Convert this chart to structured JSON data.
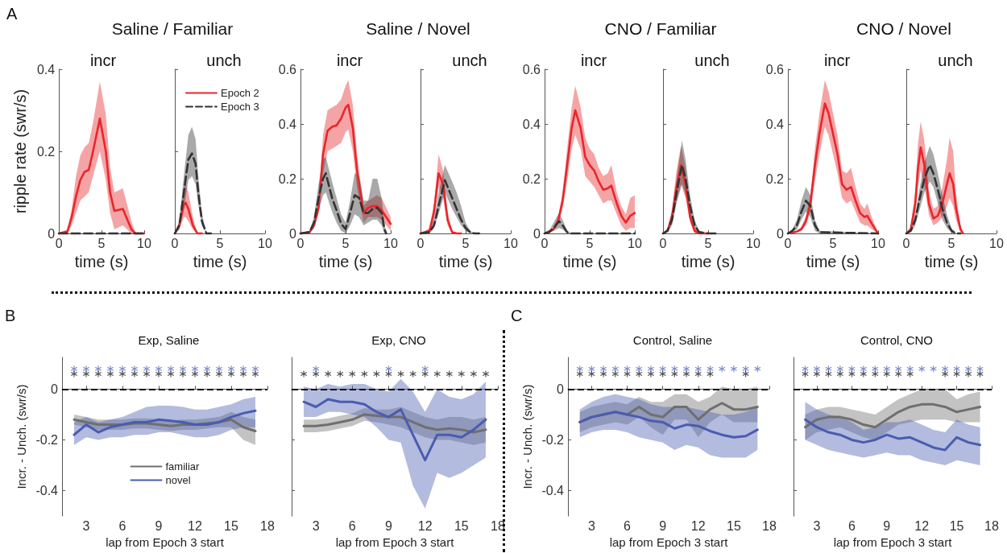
{
  "chart_data": [
    {
      "type": "line",
      "title": "incr",
      "subtitle": "Saline / Familiar",
      "xlabel": "time (s)",
      "ylabel": "ripple rate (swr/s)",
      "annotations": [
        "A"
      ],
      "xlim": [
        0,
        10
      ],
      "xticks": [
        0,
        5,
        10
      ],
      "ylim": [
        0,
        0.4
      ],
      "yticks": [
        0,
        0.2,
        0.4
      ],
      "marker": "none",
      "line_style": "solid",
      "series": [
        {
          "color": "#e8262b",
          "x": [
            0,
            1,
            1.5,
            2,
            2.5,
            3,
            3.5,
            4,
            4.8,
            5.5,
            6,
            6.5,
            7.5,
            8.5,
            9,
            10
          ],
          "values": [
            0,
            0.005,
            0.04,
            0.09,
            0.13,
            0.15,
            0.155,
            0.2,
            0.28,
            0.2,
            0.1,
            0.055,
            0.06,
            0.01,
            0,
            0
          ],
          "lower": [
            0,
            0,
            0.02,
            0.05,
            0.08,
            0.09,
            0.1,
            0.14,
            0.2,
            0.13,
            0.05,
            0.01,
            0.02,
            0,
            0,
            0
          ],
          "upper": [
            0,
            0.01,
            0.06,
            0.14,
            0.19,
            0.21,
            0.22,
            0.27,
            0.37,
            0.29,
            0.16,
            0.1,
            0.11,
            0.03,
            0,
            0
          ]
        },
        {
          "color": "#333333",
          "line_style": "dashed",
          "x": [
            0,
            10
          ],
          "values": [
            0,
            0
          ]
        }
      ]
    },
    {
      "type": "line",
      "title": "unch",
      "xlabel": "time (s)",
      "tick_labels": "x",
      "legend": "top",
      "xlim": [
        0,
        10
      ],
      "xticks": [
        0,
        5,
        10
      ],
      "ylim": [
        0,
        0.4
      ],
      "yticks": [
        0,
        0.2,
        0.4
      ],
      "marker": "none",
      "line_style": "solid",
      "series": [
        {
          "name": "Epoch 2",
          "color": "#e8262b",
          "x": [
            0,
            0.5,
            1,
            1.2,
            1.5,
            2,
            2.5,
            3
          ],
          "values": [
            0,
            0.02,
            0.07,
            0.075,
            0.06,
            0.02,
            0,
            0
          ],
          "lower": [
            0,
            0.01,
            0.04,
            0.04,
            0.03,
            0.01,
            0,
            0
          ],
          "upper": [
            0,
            0.03,
            0.11,
            0.12,
            0.1,
            0.04,
            0,
            0
          ]
        },
        {
          "name": "Epoch 3",
          "color": "#333333",
          "line_style": "dashed",
          "x": [
            0,
            0.5,
            1,
            1.5,
            1.9,
            2.3,
            2.6,
            3,
            3.5,
            4
          ],
          "values": [
            0,
            0.02,
            0.1,
            0.18,
            0.195,
            0.17,
            0.1,
            0.03,
            0,
            0
          ],
          "lower": [
            0,
            0.01,
            0.06,
            0.13,
            0.14,
            0.12,
            0.07,
            0.02,
            0,
            0
          ],
          "upper": [
            0,
            0.03,
            0.14,
            0.24,
            0.26,
            0.23,
            0.14,
            0.05,
            0,
            0
          ]
        }
      ]
    },
    {
      "type": "line",
      "title": "incr",
      "subtitle": "Saline / Novel",
      "xlabel": "time (s)",
      "xlim": [
        0,
        10
      ],
      "xticks": [
        0,
        5,
        10
      ],
      "ylim": [
        0,
        0.6
      ],
      "yticks": [
        0,
        0.2,
        0.4,
        0.6
      ],
      "marker": "none",
      "line_style": "solid",
      "series": [
        {
          "color": "#e8262b",
          "x": [
            0,
            1,
            1.5,
            2,
            2.5,
            3,
            3.5,
            4,
            4.5,
            5,
            5.3,
            5.8,
            6.3,
            7,
            7.5,
            8,
            8.5,
            9,
            10
          ],
          "values": [
            0,
            0.005,
            0.03,
            0.094,
            0.29,
            0.375,
            0.39,
            0.395,
            0.42,
            0.46,
            0.47,
            0.385,
            0.22,
            0.075,
            0.094,
            0.1,
            0.1,
            0.085,
            0.035
          ],
          "lower": [
            0,
            0,
            0.02,
            0.07,
            0.22,
            0.3,
            0.31,
            0.32,
            0.33,
            0.37,
            0.38,
            0.3,
            0.16,
            0.04,
            0.06,
            0.06,
            0.06,
            0.05,
            0.01
          ],
          "upper": [
            0,
            0.01,
            0.04,
            0.12,
            0.36,
            0.45,
            0.46,
            0.47,
            0.49,
            0.54,
            0.56,
            0.47,
            0.28,
            0.1,
            0.12,
            0.13,
            0.14,
            0.13,
            0.06
          ]
        },
        {
          "color": "#333333",
          "line_style": "dashed",
          "x": [
            0,
            1,
            1.5,
            2,
            2.5,
            2.8,
            3.5,
            4,
            4.5,
            5,
            5.5,
            6,
            6.5,
            7,
            7.5,
            8,
            8.5,
            9,
            9.3,
            9.5
          ],
          "values": [
            0,
            0.005,
            0.04,
            0.13,
            0.2,
            0.22,
            0.13,
            0.085,
            0.036,
            0.016,
            0.075,
            0.14,
            0.13,
            0.075,
            0.075,
            0.09,
            0.094,
            0.075,
            0.016,
            0
          ],
          "lower": [
            0,
            0,
            0.02,
            0.08,
            0.14,
            0.15,
            0.08,
            0.04,
            0.01,
            0,
            0.03,
            0.07,
            0.06,
            0.03,
            0.04,
            0.05,
            0.05,
            0.03,
            0,
            0
          ],
          "upper": [
            0,
            0.01,
            0.06,
            0.18,
            0.27,
            0.28,
            0.19,
            0.13,
            0.07,
            0.04,
            0.12,
            0.22,
            0.21,
            0.12,
            0.12,
            0.2,
            0.2,
            0.13,
            0.04,
            0
          ]
        }
      ]
    },
    {
      "type": "line",
      "title": "unch",
      "xlabel": "time (s)",
      "tick_labels": "x",
      "xlim": [
        0,
        10
      ],
      "xticks": [
        0,
        5,
        10
      ],
      "ylim": [
        0,
        0.6
      ],
      "yticks": [
        0,
        0.2,
        0.4,
        0.6
      ],
      "marker": "none",
      "line_style": "solid",
      "series": [
        {
          "color": "#e8262b",
          "x": [
            0,
            1,
            1.5,
            2,
            2.5,
            3,
            3.5,
            4,
            4.5
          ],
          "values": [
            0,
            0.01,
            0.08,
            0.22,
            0.18,
            0.05,
            0.005,
            0,
            0
          ],
          "lower": [
            0,
            0,
            0.05,
            0.17,
            0.13,
            0.03,
            0,
            0,
            0
          ],
          "upper": [
            0,
            0.02,
            0.11,
            0.29,
            0.23,
            0.08,
            0.01,
            0,
            0
          ]
        },
        {
          "color": "#333333",
          "line_style": "dashed",
          "x": [
            0,
            1,
            1.5,
            2,
            2.7,
            3.5,
            4,
            4.5,
            5,
            5.5,
            6,
            6.5
          ],
          "values": [
            0,
            0.005,
            0.03,
            0.1,
            0.195,
            0.13,
            0.09,
            0.05,
            0.02,
            0.005,
            0,
            0
          ],
          "lower": [
            0,
            0,
            0.02,
            0.07,
            0.15,
            0.09,
            0.06,
            0.03,
            0.01,
            0,
            0,
            0
          ],
          "upper": [
            0,
            0.01,
            0.05,
            0.15,
            0.25,
            0.19,
            0.15,
            0.1,
            0.04,
            0.01,
            0,
            0
          ]
        }
      ]
    },
    {
      "type": "line",
      "title": "incr",
      "subtitle": "CNO / Familiar",
      "xlabel": "time (s)",
      "xlim": [
        0,
        10
      ],
      "xticks": [
        0,
        5,
        10
      ],
      "ylim": [
        0,
        0.6
      ],
      "yticks": [
        0,
        0.2,
        0.4,
        0.6
      ],
      "marker": "none",
      "line_style": "solid",
      "series": [
        {
          "color": "#e8262b",
          "x": [
            0,
            1,
            1.5,
            2,
            2.5,
            3,
            3.4,
            4,
            4.5,
            5,
            5.5,
            6,
            6.5,
            7,
            7.4,
            8,
            8.5,
            9,
            9.5,
            10
          ],
          "values": [
            0,
            0.016,
            0.046,
            0.12,
            0.25,
            0.385,
            0.45,
            0.385,
            0.28,
            0.25,
            0.23,
            0.19,
            0.16,
            0.165,
            0.175,
            0.11,
            0.065,
            0.04,
            0.065,
            0.075
          ],
          "lower": [
            0,
            0.01,
            0.035,
            0.09,
            0.19,
            0.31,
            0.36,
            0.31,
            0.21,
            0.19,
            0.17,
            0.14,
            0.11,
            0.12,
            0.12,
            0.07,
            0.03,
            0.01,
            0.02,
            0.02
          ],
          "upper": [
            0,
            0.02,
            0.06,
            0.15,
            0.31,
            0.46,
            0.54,
            0.46,
            0.35,
            0.31,
            0.29,
            0.24,
            0.21,
            0.22,
            0.25,
            0.15,
            0.1,
            0.07,
            0.13,
            0.14
          ]
        },
        {
          "color": "#333333",
          "line_style": "dashed",
          "x": [
            0,
            0.5,
            1,
            1.6,
            2,
            2.5,
            3,
            10
          ],
          "values": [
            0,
            0.005,
            0.02,
            0.045,
            0.03,
            0.005,
            0,
            0
          ],
          "lower": [
            0,
            0,
            0.01,
            0.02,
            0.015,
            0,
            0,
            0
          ],
          "upper": [
            0,
            0.01,
            0.04,
            0.075,
            0.05,
            0.01,
            0,
            0
          ]
        }
      ]
    },
    {
      "type": "line",
      "title": "unch",
      "xlabel": "time (s)",
      "tick_labels": "x",
      "xlim": [
        0,
        10
      ],
      "xticks": [
        0,
        5,
        10
      ],
      "ylim": [
        0,
        0.6
      ],
      "yticks": [
        0,
        0.2,
        0.4,
        0.6
      ],
      "marker": "none",
      "line_style": "solid",
      "series": [
        {
          "color": "#e8262b",
          "x": [
            0,
            0.5,
            1,
            1.5,
            2,
            2.5,
            3,
            3.5,
            4,
            5
          ],
          "values": [
            0,
            0.01,
            0.06,
            0.17,
            0.25,
            0.18,
            0.06,
            0.01,
            0,
            0
          ],
          "lower": [
            0,
            0.005,
            0.04,
            0.12,
            0.18,
            0.13,
            0.04,
            0,
            0,
            0
          ],
          "upper": [
            0,
            0.015,
            0.09,
            0.23,
            0.32,
            0.24,
            0.09,
            0.02,
            0,
            0
          ]
        },
        {
          "color": "#333333",
          "line_style": "dashed",
          "x": [
            0,
            0.5,
            1,
            1.5,
            2.1,
            2.5,
            3,
            3.5,
            4,
            5,
            6
          ],
          "values": [
            0,
            0.01,
            0.05,
            0.15,
            0.25,
            0.2,
            0.1,
            0.03,
            0.005,
            0,
            0
          ],
          "lower": [
            0,
            0.005,
            0.03,
            0.11,
            0.18,
            0.14,
            0.07,
            0.02,
            0,
            0,
            0
          ],
          "upper": [
            0,
            0.02,
            0.08,
            0.2,
            0.34,
            0.27,
            0.14,
            0.05,
            0.01,
            0,
            0
          ]
        }
      ]
    },
    {
      "type": "line",
      "title": "incr",
      "subtitle": "CNO / Novel",
      "xlabel": "time (s)",
      "xlim": [
        0,
        10
      ],
      "xticks": [
        0,
        5,
        10
      ],
      "ylim": [
        0,
        0.6
      ],
      "yticks": [
        0,
        0.2,
        0.4,
        0.6
      ],
      "marker": "none",
      "line_style": "solid",
      "series": [
        {
          "color": "#e8262b",
          "x": [
            0,
            1,
            1.5,
            2,
            2.5,
            3,
            3.5,
            4.1,
            4.5,
            5,
            5.5,
            6,
            6.5,
            7,
            7.5,
            8,
            8.5,
            8.8,
            9.3,
            10
          ],
          "values": [
            0,
            0.007,
            0.016,
            0.045,
            0.11,
            0.25,
            0.365,
            0.475,
            0.44,
            0.365,
            0.29,
            0.18,
            0.16,
            0.17,
            0.12,
            0.075,
            0.06,
            0.065,
            0.036,
            0
          ],
          "lower": [
            0,
            0.003,
            0.01,
            0.03,
            0.08,
            0.19,
            0.29,
            0.39,
            0.36,
            0.29,
            0.22,
            0.13,
            0.11,
            0.12,
            0.08,
            0.04,
            0.03,
            0.03,
            0.015,
            0
          ],
          "upper": [
            0,
            0.01,
            0.025,
            0.065,
            0.14,
            0.31,
            0.44,
            0.56,
            0.52,
            0.44,
            0.36,
            0.23,
            0.22,
            0.24,
            0.17,
            0.11,
            0.09,
            0.11,
            0.06,
            0
          ]
        },
        {
          "color": "#333333",
          "line_style": "dashed",
          "x": [
            0,
            0.5,
            1,
            1.5,
            2,
            2.5,
            3,
            3.5,
            10
          ],
          "values": [
            0,
            0.01,
            0.03,
            0.08,
            0.12,
            0.1,
            0.03,
            0.005,
            0
          ],
          "lower": [
            0,
            0.005,
            0.015,
            0.05,
            0.08,
            0.06,
            0.01,
            0,
            0
          ],
          "upper": [
            0,
            0.015,
            0.05,
            0.12,
            0.17,
            0.14,
            0.05,
            0.01,
            0
          ]
        }
      ]
    },
    {
      "type": "line",
      "title": "unch",
      "xlabel": "time (s)",
      "tick_labels": "x",
      "xlim": [
        0,
        10
      ],
      "xticks": [
        0,
        5,
        10
      ],
      "ylim": [
        0,
        0.6
      ],
      "yticks": [
        0,
        0.2,
        0.4,
        0.6
      ],
      "marker": "none",
      "line_style": "solid",
      "series": [
        {
          "color": "#e8262b",
          "x": [
            0,
            0.5,
            1,
            1.3,
            1.6,
            2,
            2.5,
            3,
            3.5,
            4,
            4.5,
            4.8,
            5.2,
            5.5,
            6,
            6.3
          ],
          "values": [
            0,
            0.016,
            0.11,
            0.24,
            0.315,
            0.25,
            0.11,
            0.055,
            0.065,
            0.11,
            0.18,
            0.22,
            0.18,
            0.094,
            0.016,
            0
          ],
          "lower": [
            0,
            0.01,
            0.07,
            0.17,
            0.23,
            0.17,
            0.07,
            0.03,
            0.04,
            0.06,
            0.1,
            0.13,
            0.1,
            0.05,
            0.005,
            0
          ],
          "upper": [
            0,
            0.025,
            0.16,
            0.33,
            0.41,
            0.34,
            0.16,
            0.09,
            0.1,
            0.17,
            0.27,
            0.35,
            0.3,
            0.15,
            0.03,
            0
          ]
        },
        {
          "color": "#333333",
          "line_style": "dashed",
          "x": [
            0,
            0.5,
            1,
            1.5,
            2,
            2.6,
            3,
            3.5,
            4,
            4.5,
            5,
            5.5,
            6
          ],
          "values": [
            0,
            0.01,
            0.05,
            0.13,
            0.2,
            0.25,
            0.22,
            0.16,
            0.09,
            0.04,
            0.01,
            0,
            0
          ],
          "lower": [
            0,
            0.005,
            0.03,
            0.09,
            0.15,
            0.19,
            0.17,
            0.11,
            0.05,
            0.02,
            0.005,
            0,
            0
          ],
          "upper": [
            0,
            0.015,
            0.07,
            0.17,
            0.26,
            0.32,
            0.29,
            0.22,
            0.14,
            0.07,
            0.02,
            0,
            0
          ]
        }
      ]
    },
    {
      "type": "line",
      "title": "Exp, Saline",
      "xlabel": "lap from Epoch 3 start",
      "ylabel": "Incr. - Unch. (swr/s)",
      "annotations": [
        "B"
      ],
      "legend": "bottom",
      "xlim": [
        1,
        18
      ],
      "xticks": [
        3,
        6,
        9,
        12,
        15,
        18
      ],
      "ylim": [
        -0.5,
        0.125
      ],
      "yticks": [
        -0.4,
        -0.2,
        0
      ],
      "marker": "none",
      "line_style": "solid",
      "ref_lines": [
        {
          "axis": "y",
          "value": 0,
          "color": "#000000",
          "line_style": "dashed"
        }
      ],
      "x": [
        2,
        3,
        4,
        5,
        6,
        7,
        8,
        9,
        10,
        11,
        12,
        13,
        14,
        15,
        16,
        17
      ],
      "series": [
        {
          "name": "familiar",
          "color": "#6f6f6f",
          "values": [
            -0.12,
            -0.13,
            -0.14,
            -0.14,
            -0.14,
            -0.135,
            -0.135,
            -0.14,
            -0.145,
            -0.14,
            -0.14,
            -0.135,
            -0.13,
            -0.12,
            -0.15,
            -0.165
          ],
          "lower": [
            -0.14,
            -0.15,
            -0.16,
            -0.16,
            -0.16,
            -0.155,
            -0.155,
            -0.16,
            -0.165,
            -0.16,
            -0.16,
            -0.155,
            -0.15,
            -0.15,
            -0.2,
            -0.22
          ],
          "upper": [
            -0.1,
            -0.11,
            -0.12,
            -0.12,
            -0.12,
            -0.115,
            -0.115,
            -0.12,
            -0.125,
            -0.12,
            -0.12,
            -0.115,
            -0.11,
            -0.09,
            -0.11,
            -0.12
          ]
        },
        {
          "name": "novel",
          "color": "#4a5cb0",
          "values": [
            -0.18,
            -0.14,
            -0.17,
            -0.15,
            -0.14,
            -0.13,
            -0.13,
            -0.12,
            -0.125,
            -0.13,
            -0.14,
            -0.14,
            -0.13,
            -0.11,
            -0.095,
            -0.085
          ],
          "lower": [
            -0.22,
            -0.19,
            -0.2,
            -0.19,
            -0.19,
            -0.18,
            -0.18,
            -0.17,
            -0.17,
            -0.18,
            -0.19,
            -0.19,
            -0.18,
            -0.16,
            -0.15,
            -0.15
          ],
          "upper": [
            -0.13,
            -0.11,
            -0.13,
            -0.12,
            -0.11,
            -0.09,
            -0.07,
            -0.065,
            -0.065,
            -0.07,
            -0.08,
            -0.08,
            -0.07,
            -0.06,
            -0.04,
            -0.03
          ]
        },
        {
          "type": "scatter",
          "marker": "cross",
          "color": "#5b6ec4",
          "values": [
            0.08,
            0.08,
            0.08,
            0.08,
            0.08,
            0.08,
            0.08,
            0.08,
            0.08,
            0.08,
            0.08,
            0.08,
            0.08,
            0.08,
            0.08,
            0.08
          ]
        },
        {
          "type": "scatter",
          "marker": "cross",
          "color": "#222222",
          "values": [
            0.06,
            0.06,
            0.06,
            0.06,
            0.06,
            0.06,
            0.06,
            0.06,
            0.06,
            0.06,
            0.06,
            0.06,
            0.06,
            0.06,
            0.06,
            0.06
          ]
        }
      ]
    },
    {
      "type": "line",
      "title": "Exp, CNO",
      "xlabel": "lap from Epoch 3 start",
      "tick_labels": "x",
      "xlim": [
        1,
        18
      ],
      "xticks": [
        3,
        6,
        9,
        12,
        15,
        18
      ],
      "ylim": [
        -0.5,
        0.125
      ],
      "yticks": [
        -0.4,
        -0.2,
        0
      ],
      "marker": "none",
      "line_style": "solid",
      "ref_lines": [
        {
          "axis": "y",
          "value": 0,
          "color": "#000000",
          "line_style": "dashed"
        }
      ],
      "x": [
        2,
        3,
        4,
        5,
        6,
        7,
        8,
        9,
        10,
        11,
        12,
        13,
        14,
        15,
        16,
        17
      ],
      "series": [
        {
          "color": "#6f6f6f",
          "values": [
            -0.145,
            -0.145,
            -0.14,
            -0.13,
            -0.12,
            -0.1,
            -0.105,
            -0.11,
            -0.11,
            -0.13,
            -0.15,
            -0.16,
            -0.155,
            -0.16,
            -0.17,
            -0.16
          ],
          "lower": [
            -0.17,
            -0.17,
            -0.165,
            -0.155,
            -0.145,
            -0.125,
            -0.13,
            -0.14,
            -0.15,
            -0.17,
            -0.19,
            -0.2,
            -0.2,
            -0.21,
            -0.22,
            -0.21
          ],
          "upper": [
            -0.12,
            -0.12,
            -0.115,
            -0.105,
            -0.095,
            -0.075,
            -0.08,
            -0.08,
            -0.07,
            -0.09,
            -0.11,
            -0.12,
            -0.11,
            -0.11,
            -0.12,
            -0.11
          ]
        },
        {
          "color": "#4a5cb0",
          "values": [
            -0.05,
            -0.07,
            -0.04,
            -0.05,
            -0.05,
            -0.06,
            -0.09,
            -0.11,
            -0.08,
            -0.18,
            -0.28,
            -0.18,
            -0.18,
            -0.19,
            -0.16,
            -0.12
          ],
          "lower": [
            -0.11,
            -0.11,
            -0.09,
            -0.09,
            -0.1,
            -0.11,
            -0.15,
            -0.2,
            -0.21,
            -0.38,
            -0.47,
            -0.33,
            -0.35,
            -0.33,
            -0.3,
            -0.27
          ],
          "upper": [
            0.01,
            0,
            0.02,
            0.01,
            0.02,
            0.02,
            0,
            -0.01,
            0.04,
            -0.01,
            -0.09,
            0,
            -0.03,
            -0.04,
            -0.02,
            0.03
          ]
        },
        {
          "type": "scatter",
          "marker": "cross",
          "color": "#5b6ec4",
          "x": [
            3,
            9,
            12
          ],
          "values": [
            0.08,
            0.08,
            0.08
          ]
        },
        {
          "type": "scatter",
          "marker": "cross",
          "color": "#222222",
          "values": [
            0.06,
            0.06,
            0.06,
            0.06,
            0.06,
            0.06,
            0.06,
            0.06,
            0.06,
            0.06,
            0.06,
            0.06,
            0.06,
            0.06,
            0.06,
            0.06
          ]
        }
      ]
    },
    {
      "type": "line",
      "title": "Control, Saline",
      "xlabel": "lap from Epoch 3 start",
      "ylabel": "Incr. - Unch. (swr/s)",
      "annotations": [
        "C"
      ],
      "xlim": [
        1,
        18
      ],
      "xticks": [
        3,
        6,
        9,
        12,
        15,
        18
      ],
      "ylim": [
        -0.5,
        0.125
      ],
      "yticks": [
        -0.4,
        -0.2,
        0
      ],
      "marker": "none",
      "line_style": "solid",
      "ref_lines": [
        {
          "axis": "y",
          "value": 0,
          "color": "#000000",
          "line_style": "dashed"
        }
      ],
      "x": [
        2,
        3,
        4,
        5,
        6,
        7,
        8,
        9,
        10,
        11,
        12,
        13,
        14,
        15,
        16,
        17
      ],
      "series": [
        {
          "color": "#6f6f6f",
          "values": [
            -0.13,
            -0.11,
            -0.1,
            -0.09,
            -0.1,
            -0.07,
            -0.1,
            -0.11,
            -0.07,
            -0.07,
            -0.12,
            -0.08,
            -0.055,
            -0.08,
            -0.08,
            -0.07
          ],
          "lower": [
            -0.17,
            -0.15,
            -0.14,
            -0.13,
            -0.14,
            -0.11,
            -0.15,
            -0.18,
            -0.12,
            -0.12,
            -0.19,
            -0.13,
            -0.1,
            -0.13,
            -0.13,
            -0.13
          ],
          "upper": [
            -0.09,
            -0.07,
            -0.06,
            -0.05,
            -0.06,
            -0.03,
            -0.05,
            -0.05,
            -0.02,
            -0.02,
            -0.05,
            -0.03,
            0.01,
            0,
            0,
            0.01
          ]
        },
        {
          "color": "#4a5cb0",
          "values": [
            -0.13,
            -0.11,
            -0.1,
            -0.09,
            -0.1,
            -0.11,
            -0.125,
            -0.13,
            -0.155,
            -0.14,
            -0.145,
            -0.165,
            -0.18,
            -0.19,
            -0.185,
            -0.16
          ],
          "lower": [
            -0.19,
            -0.17,
            -0.16,
            -0.16,
            -0.17,
            -0.19,
            -0.2,
            -0.21,
            -0.24,
            -0.22,
            -0.23,
            -0.26,
            -0.27,
            -0.27,
            -0.27,
            -0.24
          ],
          "upper": [
            -0.08,
            -0.05,
            -0.03,
            -0.02,
            -0.03,
            -0.04,
            -0.06,
            -0.07,
            -0.07,
            -0.07,
            -0.08,
            -0.09,
            -0.1,
            -0.1,
            -0.09,
            -0.07
          ]
        },
        {
          "type": "scatter",
          "marker": "cross",
          "color": "#5b6ec4",
          "values": [
            0.08,
            0.08,
            0.08,
            0.08,
            0.08,
            0.08,
            0.08,
            0.08,
            0.08,
            0.08,
            0.08,
            0.08,
            0.08,
            0.08,
            0.08,
            0.08
          ]
        },
        {
          "type": "scatter",
          "marker": "cross",
          "color": "#222222",
          "x": [
            2,
            3,
            4,
            5,
            6,
            7,
            8,
            9,
            10,
            11,
            12,
            13,
            16
          ],
          "values": [
            0.06,
            0.06,
            0.06,
            0.06,
            0.06,
            0.06,
            0.06,
            0.06,
            0.06,
            0.06,
            0.06,
            0.06,
            0.06
          ]
        }
      ]
    },
    {
      "type": "line",
      "title": "Control, CNO",
      "xlabel": "lap from Epoch 3 start",
      "tick_labels": "x",
      "xlim": [
        1,
        18
      ],
      "xticks": [
        3,
        6,
        9,
        12,
        15,
        18
      ],
      "ylim": [
        -0.5,
        0.125
      ],
      "yticks": [
        -0.4,
        -0.2,
        0
      ],
      "marker": "none",
      "line_style": "solid",
      "ref_lines": [
        {
          "axis": "y",
          "value": 0,
          "color": "#000000",
          "line_style": "dashed"
        }
      ],
      "x": [
        2,
        3,
        4,
        5,
        6,
        7,
        8,
        9,
        10,
        11,
        12,
        13,
        14,
        15,
        16,
        17
      ],
      "series": [
        {
          "color": "#6f6f6f",
          "values": [
            -0.15,
            -0.12,
            -0.11,
            -0.11,
            -0.12,
            -0.14,
            -0.15,
            -0.12,
            -0.09,
            -0.07,
            -0.06,
            -0.06,
            -0.07,
            -0.09,
            -0.08,
            -0.07
          ],
          "lower": [
            -0.2,
            -0.17,
            -0.16,
            -0.15,
            -0.17,
            -0.19,
            -0.2,
            -0.17,
            -0.14,
            -0.13,
            -0.12,
            -0.12,
            -0.12,
            -0.13,
            -0.13,
            -0.13
          ],
          "upper": [
            -0.1,
            -0.08,
            -0.07,
            -0.07,
            -0.08,
            -0.09,
            -0.1,
            -0.07,
            -0.04,
            -0.02,
            0,
            0,
            0,
            -0.04,
            -0.02,
            -0.01
          ]
        },
        {
          "color": "#4a5cb0",
          "values": [
            -0.12,
            -0.15,
            -0.17,
            -0.18,
            -0.2,
            -0.21,
            -0.2,
            -0.18,
            -0.195,
            -0.19,
            -0.21,
            -0.23,
            -0.24,
            -0.19,
            -0.21,
            -0.22
          ],
          "lower": [
            -0.2,
            -0.22,
            -0.24,
            -0.25,
            -0.26,
            -0.27,
            -0.26,
            -0.25,
            -0.26,
            -0.26,
            -0.28,
            -0.29,
            -0.3,
            -0.28,
            -0.29,
            -0.3
          ],
          "upper": [
            -0.05,
            -0.08,
            -0.1,
            -0.11,
            -0.13,
            -0.16,
            -0.15,
            -0.13,
            -0.13,
            -0.12,
            -0.14,
            -0.16,
            -0.17,
            -0.12,
            -0.14,
            -0.15
          ]
        },
        {
          "type": "scatter",
          "marker": "cross",
          "color": "#5b6ec4",
          "values": [
            0.08,
            0.08,
            0.08,
            0.08,
            0.08,
            0.08,
            0.08,
            0.08,
            0.08,
            0.08,
            0.08,
            0.08,
            0.08,
            0.08,
            0.08,
            0.08
          ]
        },
        {
          "type": "scatter",
          "marker": "cross",
          "color": "#222222",
          "x": [
            2,
            3,
            4,
            5,
            6,
            7,
            8,
            9,
            10,
            11,
            14,
            15,
            16,
            17
          ],
          "values": [
            0.06,
            0.06,
            0.06,
            0.06,
            0.06,
            0.06,
            0.06,
            0.06,
            0.06,
            0.06,
            0.06,
            0.06,
            0.06,
            0.06
          ]
        }
      ]
    }
  ]
}
